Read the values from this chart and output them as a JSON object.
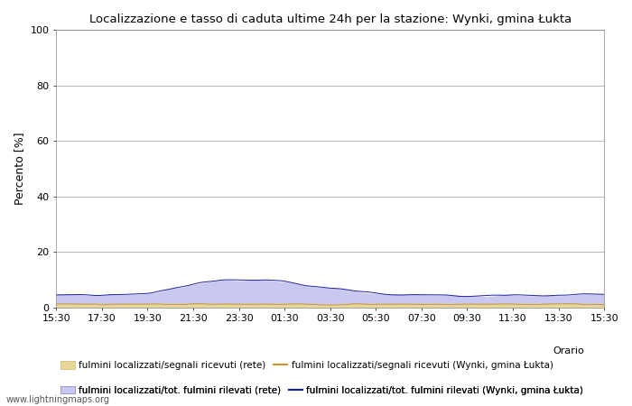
{
  "title": "Localizzazione e tasso di caduta ultime 24h per la stazione: Wynki, gmina Łukta",
  "ylabel": "Percento [%]",
  "xlabel_orario": "Orario",
  "xlim_labels": [
    "15:30",
    "17:30",
    "19:30",
    "21:30",
    "23:30",
    "01:30",
    "03:30",
    "05:30",
    "07:30",
    "09:30",
    "11:30",
    "13:30",
    "15:30"
  ],
  "ylim": [
    0,
    100
  ],
  "yticks": [
    0,
    20,
    40,
    60,
    80,
    100
  ],
  "legend_row1_left": "fulmini localizzati/segnali ricevuti (rete)",
  "legend_row1_right": "fulmini localizzati/segnali ricevuti (Wynki, gmina Łukta)",
  "legend_row2_left": "fulmini localizzati/tot. fulmini rilevati (rete)",
  "legend_row2_right": "fulmini localizzati/tot. fulmini rilevati (Wynki, gmina Łukta)",
  "legend_orario": "Orario",
  "watermark": "www.lightningmaps.org",
  "n_points": 289,
  "fill_rete_color": "#e8d898",
  "fill_rete_edge": "#c8b870",
  "fill_network_color": "#c8c8f0",
  "fill_network_edge": "#9090c0",
  "line_rete_color": "#d09820",
  "line_network_color": "#2020a0",
  "background_color": "#ffffff",
  "grid_color": "#999999"
}
